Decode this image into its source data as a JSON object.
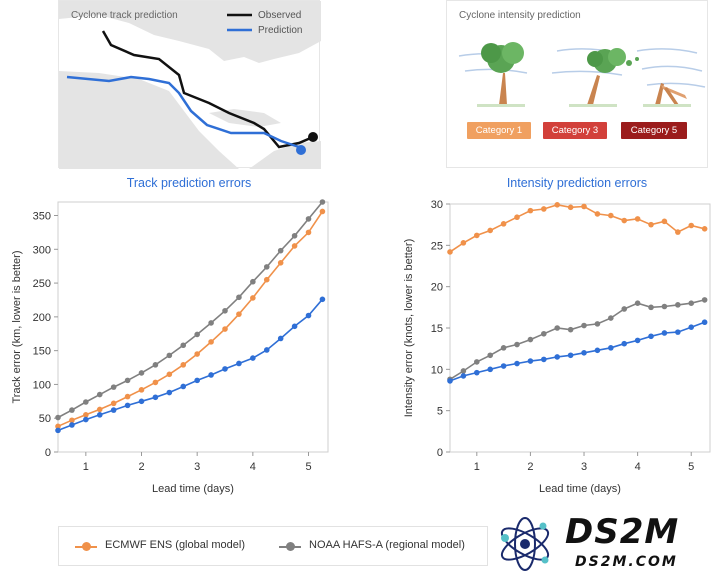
{
  "track_card": {
    "title": "Cyclone track prediction",
    "legend_observed": "Observed",
    "legend_prediction": "Prediction",
    "observed_color": "#111111",
    "prediction_color": "#2f6fd6"
  },
  "intensity_card": {
    "title": "Cyclone intensity prediction",
    "categories": [
      {
        "label": "Category 1",
        "color": "#f0a060"
      },
      {
        "label": "Category 3",
        "color": "#d2403a"
      },
      {
        "label": "Category 5",
        "color": "#9b1c1c"
      }
    ]
  },
  "legend": {
    "ecmwf": "ECMWF ENS (global model)",
    "noaa": "NOAA HAFS-A (regional model)",
    "ecmwf_color": "#f0914a",
    "noaa_color": "#808080",
    "third_color": "#2f6fd6"
  },
  "logo": {
    "text": "DS2M",
    "url": "DS2M.COM"
  },
  "chart_data": [
    {
      "type": "line",
      "title": "Track prediction errors",
      "xlabel": "Lead time (days)",
      "ylabel": "Track error (km, lower is better)",
      "xlim": [
        0.5,
        5.35
      ],
      "ylim": [
        0,
        370
      ],
      "xticks": [
        1,
        2,
        3,
        4,
        5
      ],
      "yticks": [
        0,
        50,
        100,
        150,
        200,
        250,
        300,
        350
      ],
      "x": [
        0.5,
        0.75,
        1.0,
        1.25,
        1.5,
        1.75,
        2.0,
        2.25,
        2.5,
        2.75,
        3.0,
        3.25,
        3.5,
        3.75,
        4.0,
        4.25,
        4.5,
        4.75,
        5.0,
        5.25
      ],
      "series": [
        {
          "name": "ECMWF ENS (global model)",
          "color": "#f0914a",
          "values": [
            38,
            47,
            55,
            63,
            72,
            82,
            92,
            103,
            115,
            129,
            145,
            163,
            182,
            204,
            228,
            255,
            280,
            305,
            325,
            356
          ]
        },
        {
          "name": "NOAA HAFS-A (regional model)",
          "color": "#808080",
          "values": [
            51,
            62,
            74,
            85,
            96,
            106,
            117,
            129,
            143,
            158,
            174,
            191,
            209,
            229,
            252,
            274,
            298,
            320,
            345,
            370
          ]
        },
        {
          "name": "",
          "color": "#2f6fd6",
          "values": [
            32,
            40,
            48,
            55,
            62,
            69,
            75,
            81,
            88,
            97,
            106,
            114,
            123,
            131,
            139,
            151,
            168,
            186,
            202,
            226
          ]
        }
      ]
    },
    {
      "type": "line",
      "title": "Intensity prediction errors",
      "xlabel": "Lead time (days)",
      "ylabel": "Intensity error (knots, lower is better)",
      "xlim": [
        0.5,
        5.35
      ],
      "ylim": [
        0,
        30
      ],
      "xticks": [
        1,
        2,
        3,
        4,
        5
      ],
      "yticks": [
        0,
        5,
        10,
        15,
        20,
        25,
        30
      ],
      "x": [
        0.5,
        0.75,
        1.0,
        1.25,
        1.5,
        1.75,
        2.0,
        2.25,
        2.5,
        2.75,
        3.0,
        3.25,
        3.5,
        3.75,
        4.0,
        4.25,
        4.5,
        4.75,
        5.0,
        5.25
      ],
      "series": [
        {
          "name": "ECMWF ENS (global model)",
          "color": "#f0914a",
          "values": [
            24.2,
            25.3,
            26.2,
            26.8,
            27.6,
            28.4,
            29.2,
            29.4,
            29.9,
            29.6,
            29.7,
            28.8,
            28.6,
            28.0,
            28.2,
            27.5,
            27.9,
            26.6,
            27.4,
            27.0
          ]
        },
        {
          "name": "NOAA HAFS-A (regional model)",
          "color": "#808080",
          "values": [
            8.8,
            9.8,
            10.9,
            11.7,
            12.6,
            13.0,
            13.6,
            14.3,
            15.0,
            14.8,
            15.3,
            15.5,
            16.2,
            17.3,
            18.0,
            17.5,
            17.6,
            17.8,
            18.0,
            18.4
          ]
        },
        {
          "name": "",
          "color": "#2f6fd6",
          "values": [
            8.6,
            9.2,
            9.6,
            10.0,
            10.4,
            10.7,
            11.0,
            11.2,
            11.5,
            11.7,
            12.0,
            12.3,
            12.6,
            13.1,
            13.5,
            14.0,
            14.4,
            14.5,
            15.1,
            15.7
          ]
        }
      ]
    }
  ]
}
